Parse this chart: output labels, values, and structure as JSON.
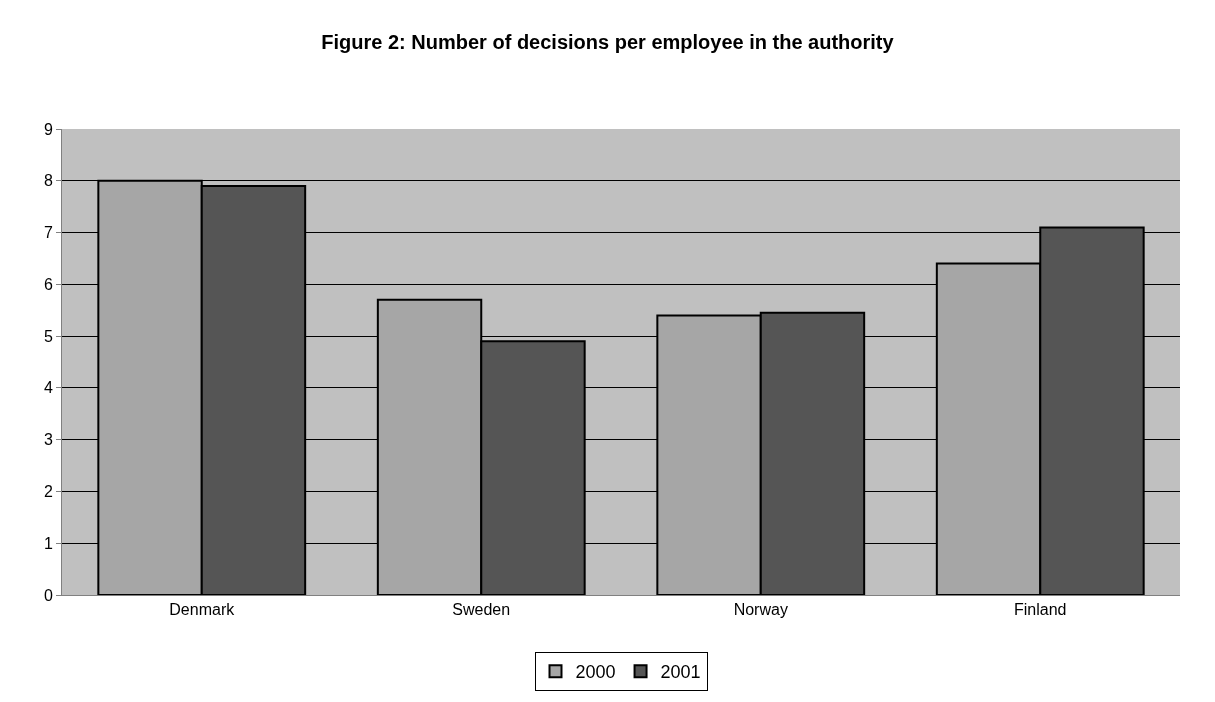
{
  "chart_data": {
    "type": "bar",
    "title": "Figure 2: Number of decisions per employee in the authority",
    "categories": [
      "Denmark",
      "Sweden",
      "Norway",
      "Finland"
    ],
    "series": [
      {
        "name": "2000",
        "color": "#a6a6a6",
        "values": [
          8.0,
          5.7,
          5.4,
          6.4
        ]
      },
      {
        "name": "2001",
        "color": "#555555",
        "values": [
          7.9,
          4.9,
          5.45,
          7.1
        ]
      }
    ],
    "ylim": [
      0,
      9
    ],
    "yticks": [
      0,
      1,
      2,
      3,
      4,
      5,
      6,
      7,
      8,
      9
    ],
    "grid": "y",
    "legend": "bottom"
  }
}
